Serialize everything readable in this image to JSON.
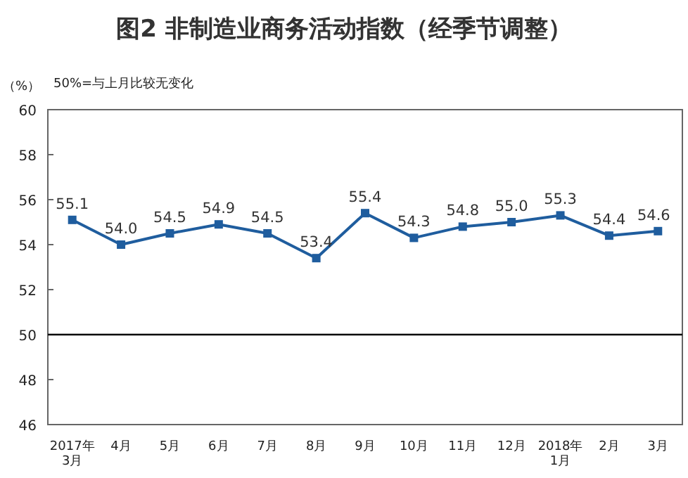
{
  "chart_data": {
    "type": "line",
    "title": "图2 非制造业商务活动指数（经季节调整）",
    "ylabel": "（%）",
    "annotations": [
      "50%=与上月比较无变化"
    ],
    "categories": [
      "2017年\n3月",
      "4月",
      "5月",
      "6月",
      "7月",
      "8月",
      "9月",
      "10月",
      "11月",
      "12月",
      "2018年\n1月",
      "2月",
      "3月"
    ],
    "series": [
      {
        "color": "#1f5d9e",
        "values": [
          55.1,
          54.0,
          54.5,
          54.9,
          54.5,
          53.4,
          55.4,
          54.3,
          54.8,
          55.0,
          55.3,
          54.4,
          54.6
        ]
      }
    ],
    "ylim": [
      46,
      60
    ],
    "yticks": [
      46,
      48,
      50,
      52,
      54,
      56,
      58,
      60
    ],
    "ref_lines": [
      {
        "axis": "y",
        "value": 50,
        "color": "#000000"
      }
    ],
    "value_labels": [
      "55.1",
      "54.0",
      "54.5",
      "54.9",
      "54.5",
      "53.4",
      "55.4",
      "54.3",
      "54.8",
      "55.0",
      "55.3",
      "54.4",
      "54.6"
    ],
    "marker": "square"
  }
}
